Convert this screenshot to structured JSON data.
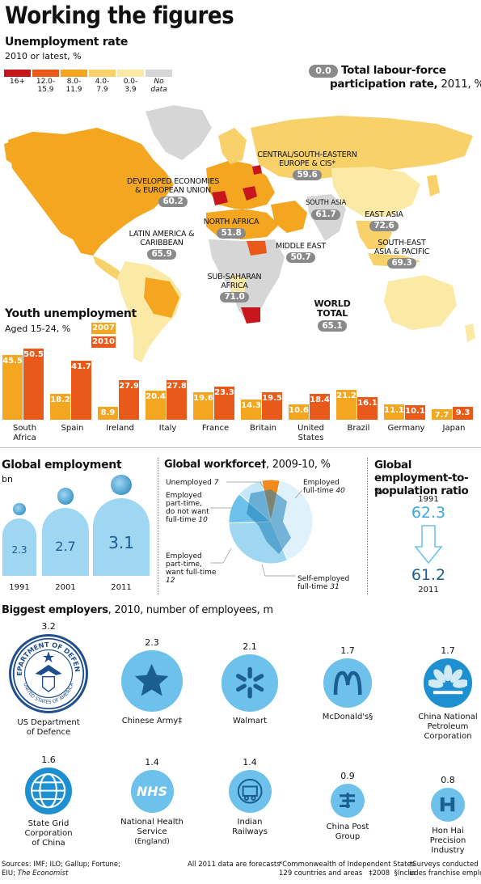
{
  "title": "Working the figures",
  "unemployment": {
    "heading": "Unemployment rate",
    "subheading": "2010 or latest, %",
    "legend": [
      {
        "label": "16+",
        "color": "#c8161d"
      },
      {
        "label": "12.0-\n15.9",
        "color": "#e8591a"
      },
      {
        "label": "8.0-\n11.9",
        "color": "#f4a621"
      },
      {
        "label": "4.0-\n7.9",
        "color": "#f8d16a"
      },
      {
        "label": "0.0-\n3.9",
        "color": "#fbe9a6"
      },
      {
        "label": "No\ndata",
        "color": "#d6d6d6"
      }
    ],
    "participation_key_pill": "0.0",
    "participation_key_label": "Total labour-force",
    "participation_key_label2": "participation rate,",
    "participation_key_year": "2011, %"
  },
  "regions": [
    {
      "id": "cis",
      "name": "CENTRAL/SOUTH-EASTERN\nEUROPE & CIS*",
      "value": "59.6"
    },
    {
      "id": "developed",
      "name": "DEVELOPED ECONOMIES\n& EUROPEAN UNION",
      "value": "60.2"
    },
    {
      "id": "south-asia",
      "name": "SOUTH ASIA",
      "value": "61.7"
    },
    {
      "id": "east-asia",
      "name": "EAST ASIA",
      "value": "72.6"
    },
    {
      "id": "north-africa",
      "name": "NORTH AFRICA",
      "value": "51.8"
    },
    {
      "id": "latin-america",
      "name": "LATIN AMERICA &\nCARIBBEAN",
      "value": "65.9"
    },
    {
      "id": "middle-east",
      "name": "MIDDLE EAST",
      "value": "50.7"
    },
    {
      "id": "se-asia",
      "name": "SOUTH-EAST\nASIA & PACIFIC",
      "value": "69.3"
    },
    {
      "id": "ssa",
      "name": "SUB-SAHARAN\nAFRICA",
      "value": "71.0"
    },
    {
      "id": "world",
      "name": "WORLD\nTOTAL",
      "value": "65.1"
    }
  ],
  "chart_data": [
    {
      "type": "bar",
      "title": "Youth unemployment",
      "subtitle": "Aged 15-24, %",
      "categories": [
        "South Africa",
        "Spain",
        "Ireland",
        "Italy",
        "France",
        "Britain",
        "United States",
        "Brazil",
        "Germany",
        "Japan"
      ],
      "series": [
        {
          "name": "2007",
          "color": "#f4a621",
          "values": [
            45.5,
            18.2,
            8.9,
            20.4,
            19.6,
            14.3,
            10.6,
            21.2,
            11.1,
            7.7
          ]
        },
        {
          "name": "2010",
          "color": "#e8591a",
          "values": [
            50.5,
            41.7,
            27.9,
            27.8,
            23.3,
            19.5,
            18.4,
            16.1,
            10.1,
            9.3
          ]
        }
      ]
    },
    {
      "type": "bar",
      "title": "Global employment",
      "subtitle": "bn",
      "categories": [
        "1991",
        "2001",
        "2011"
      ],
      "values": [
        2.3,
        2.7,
        3.1
      ]
    },
    {
      "type": "pie",
      "title": "Global workforce",
      "title_mark": "†",
      "subtitle": ", 2009-10, %",
      "slices": [
        {
          "label": "Employed full-time",
          "value": 40,
          "color": "#dff1fa"
        },
        {
          "label": "Self-employed full-time",
          "value": 31,
          "color": "#9fd6f2"
        },
        {
          "label": "Employed part-time, want full-time",
          "value": 12,
          "color": "#6ec1ea"
        },
        {
          "label": "Employed part-time, do not want full-time",
          "value": 10,
          "color": "#c5e7f7"
        },
        {
          "label": "Unemployed",
          "value": 7,
          "color": "#f28a1e"
        }
      ]
    },
    {
      "type": "table",
      "title": "Global employment-to-population ratio",
      "subtitle": "%",
      "rows": [
        {
          "year": "1991",
          "value": "62.3"
        },
        {
          "year": "2011",
          "value": "61.2"
        }
      ]
    },
    {
      "type": "bar",
      "title": "Biggest employers",
      "subtitle": "2010, number of employees, m",
      "categories": [
        "US Department of Defence",
        "Chinese Army",
        "Walmart",
        "McDonald's",
        "China National Petroleum Corporation",
        "State Grid Corporation of China",
        "National Health Service (England)",
        "Indian Railways",
        "China Post Group",
        "Hon Hai Precision Industry"
      ],
      "values": [
        3.2,
        2.3,
        2.1,
        1.7,
        1.7,
        1.6,
        1.4,
        1.4,
        0.9,
        0.8
      ]
    }
  ],
  "workforce_labels": {
    "unemployed": "Unemployed",
    "unemployed_v": "7",
    "ptno": "Employed\npart-time,\ndo not want\nfull-time",
    "ptno_v": "10",
    "ptwant": "Employed\npart-time,\nwant full-time",
    "ptwant_v": "12",
    "ft": "Employed\nfull-time",
    "ft_v": "40",
    "self": "Self-employed\nfull-time",
    "self_v": "31"
  },
  "youth_display_names": [
    "South\nAfrica",
    "Spain",
    "Ireland",
    "Italy",
    "France",
    "Britain",
    "United\nStates",
    "Brazil",
    "Germany",
    "Japan"
  ],
  "employers": [
    {
      "name": "US Department\nof Defence",
      "mark": "",
      "value": "3.2",
      "logo": "defense-seal",
      "color": "#1f4e8c",
      "seal_top": "DEPARTMENT OF DEFENSE",
      "seal_bottom": "UNITED STATES OF AMERICA"
    },
    {
      "name": "Chinese Army",
      "mark": "‡",
      "value": "2.3",
      "logo": "star",
      "color": "#6ec1ea"
    },
    {
      "name": "Walmart",
      "mark": "",
      "value": "2.1",
      "logo": "spark",
      "color": "#6ec1ea"
    },
    {
      "name": "McDonald's",
      "mark": "§",
      "value": "1.7",
      "logo": "arches",
      "color": "#6ec1ea"
    },
    {
      "name": "China National\nPetroleum\nCorporation",
      "mark": "",
      "value": "1.7",
      "logo": "petal",
      "color": "#1e8fd0"
    },
    {
      "name": "State Grid\nCorporation\nof China",
      "mark": "",
      "value": "1.6",
      "logo": "globe",
      "color": "#1e8fd0"
    },
    {
      "name": "National Health\nService",
      "sub": "(England)",
      "mark": "",
      "value": "1.4",
      "logo": "nhs",
      "color": "#6ec1ea",
      "logo_text": "NHS"
    },
    {
      "name": "Indian\nRailways",
      "mark": "",
      "value": "1.4",
      "logo": "rail",
      "color": "#6ec1ea"
    },
    {
      "name": "China Post\nGroup",
      "mark": "",
      "value": "0.9",
      "logo": "post",
      "color": "#6ec1ea"
    },
    {
      "name": "Hon Hai\nPrecision\nIndustry",
      "mark": "",
      "value": "0.8",
      "logo": "honhai",
      "color": "#6ec1ea"
    }
  ],
  "footer": {
    "sources_1": "Sources: IMF; ILO; Gallup; Fortune;",
    "sources_2a": "EIU; ",
    "sources_2b": "The Economist",
    "note_1": "All 2011 data are forecasts",
    "note_2": "*Commonwealth of Independent States",
    "note_3": "†Surveys conducted in",
    "note_4": "129 countries and areas",
    "note_5": "‡2008",
    "note_6": "§Includes franchise employees"
  }
}
